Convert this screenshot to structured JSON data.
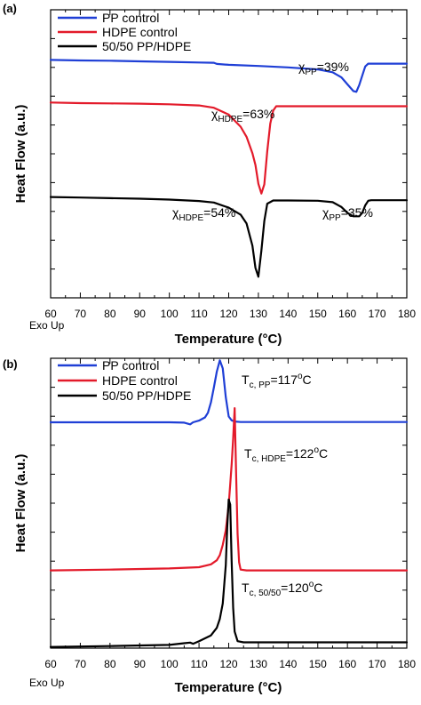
{
  "chart_data": [
    {
      "panel": "(a)",
      "type": "line",
      "xlabel": "Temperature (°C)",
      "ylabel": "Heat Flow (a.u.)",
      "corner_note": "Exo Up",
      "xlim": [
        60,
        180
      ],
      "ylim": [
        0,
        100
      ],
      "x_ticks": [
        60,
        70,
        80,
        90,
        100,
        110,
        120,
        130,
        140,
        150,
        160,
        170,
        180
      ],
      "y_tick_labels": "none",
      "legend": "top-left",
      "series": [
        {
          "name": "PP control",
          "color": "#1f3fd6",
          "x": [
            60,
            70,
            80,
            90,
            100,
            110,
            115,
            116,
            120,
            130,
            140,
            150,
            155,
            158,
            160,
            162,
            163,
            164,
            165,
            166,
            167,
            170,
            175,
            180
          ],
          "y": [
            82.6,
            82.4,
            82.3,
            82.1,
            81.9,
            81.7,
            81.6,
            81.2,
            80.9,
            80.5,
            80.0,
            79.3,
            78.3,
            76.5,
            74.1,
            71.8,
            71.5,
            73.9,
            77.2,
            80.3,
            81.3,
            81.3,
            81.3,
            81.3
          ]
        },
        {
          "name": "HDPE control",
          "color": "#e31a2a",
          "x": [
            60,
            70,
            80,
            90,
            100,
            110,
            115,
            120,
            124,
            126,
            128,
            129,
            130,
            131,
            132,
            133,
            134,
            135,
            136,
            140,
            150,
            160,
            170,
            180
          ],
          "y": [
            67.8,
            67.6,
            67.5,
            67.4,
            67.2,
            66.8,
            66.0,
            63.6,
            59.4,
            55.9,
            50.2,
            46.1,
            39.6,
            36.2,
            39.4,
            50.9,
            60.5,
            65.0,
            66.5,
            66.5,
            66.5,
            66.5,
            66.5,
            66.5
          ]
        },
        {
          "name": "50/50 PP/HDPE",
          "color": "#000000",
          "x": [
            60,
            70,
            80,
            90,
            100,
            110,
            115,
            120,
            124,
            126,
            128,
            129,
            130,
            131,
            132,
            133,
            135,
            140,
            150,
            155,
            158,
            160,
            162,
            164,
            165,
            166,
            167,
            168,
            170,
            180
          ],
          "y": [
            35.0,
            34.8,
            34.6,
            34.4,
            34.1,
            33.6,
            33.1,
            31.3,
            28.9,
            25.8,
            18.1,
            10.4,
            7.3,
            16.4,
            26.7,
            32.7,
            33.8,
            33.8,
            33.7,
            33.2,
            31.5,
            29.5,
            28.3,
            28.3,
            29.5,
            32.1,
            33.7,
            33.9,
            33.9,
            33.9
          ]
        }
      ],
      "annotations": [
        {
          "symbol": "χ",
          "sub": "PP",
          "text": "=39%"
        },
        {
          "symbol": "χ",
          "sub": "HDPE",
          "text": "=63%"
        },
        {
          "symbol": "χ",
          "sub": "HDPE",
          "text": "=54%"
        },
        {
          "symbol": "χ",
          "sub": "PP",
          "text": "=35%"
        }
      ]
    },
    {
      "panel": "(b)",
      "type": "line",
      "xlabel": "Temperature (°C)",
      "ylabel": "Heat Flow (a.u.)",
      "corner_note": "Exo Up",
      "xlim": [
        60,
        180
      ],
      "ylim": [
        0,
        100
      ],
      "x_ticks": [
        60,
        70,
        80,
        90,
        100,
        110,
        120,
        130,
        140,
        150,
        160,
        170,
        180
      ],
      "y_tick_labels": "none",
      "legend": "top-left",
      "series": [
        {
          "name": "PP control",
          "color": "#1f3fd6",
          "x": [
            60,
            80,
            100,
            105,
            107,
            108,
            110,
            112,
            113,
            114,
            115,
            116,
            117,
            118,
            119,
            120,
            121,
            122,
            124,
            130,
            140,
            160,
            180
          ],
          "y": [
            77.9,
            77.9,
            77.9,
            77.8,
            77.2,
            77.9,
            78.5,
            79.6,
            81.2,
            84.8,
            89.9,
            95.4,
            99.3,
            96.5,
            86.6,
            79.9,
            78.6,
            78.2,
            78.0,
            78.0,
            78.0,
            78.0,
            78.0
          ]
        },
        {
          "name": "HDPE control",
          "color": "#e31a2a",
          "x": [
            60,
            80,
            100,
            110,
            114,
            116,
            117,
            118,
            119,
            120,
            120.5,
            121,
            121.5,
            122,
            122.5,
            123,
            123.5,
            124,
            126,
            130,
            140,
            160,
            180
          ],
          "y": [
            26.8,
            27.1,
            27.5,
            27.9,
            28.9,
            30.3,
            32.1,
            35.6,
            40.6,
            49.4,
            56.5,
            63.3,
            72.2,
            82.8,
            59.4,
            39.4,
            29.6,
            27.1,
            26.8,
            26.8,
            26.8,
            26.8,
            26.8
          ]
        },
        {
          "name": "50/50 PP/HDPE",
          "color": "#000000",
          "x": [
            60,
            80,
            100,
            105,
            107,
            108,
            110,
            114,
            116,
            117,
            118,
            119,
            119.5,
            120,
            120.5,
            121,
            121.5,
            122,
            123,
            125,
            130,
            140,
            160,
            180
          ],
          "y": [
            0.4,
            0.7,
            1.1,
            1.7,
            1.9,
            1.5,
            2.4,
            4.4,
            7.0,
            10.1,
            15.4,
            28.6,
            41.5,
            51.3,
            49.5,
            30.0,
            14.0,
            5.7,
            2.4,
            2.0,
            2.0,
            2.0,
            2.0,
            2.0
          ]
        }
      ],
      "annotations": [
        {
          "symbol": "T",
          "sub": "c, PP",
          "text": "=117",
          "sup": "o",
          "tail": "C"
        },
        {
          "symbol": "T",
          "sub": "c, HDPE",
          "text": "=122",
          "sup": "o",
          "tail": "C"
        },
        {
          "symbol": "T",
          "sub": "c, 50/50",
          "text": "=120",
          "sup": "o",
          "tail": "C"
        }
      ]
    }
  ]
}
